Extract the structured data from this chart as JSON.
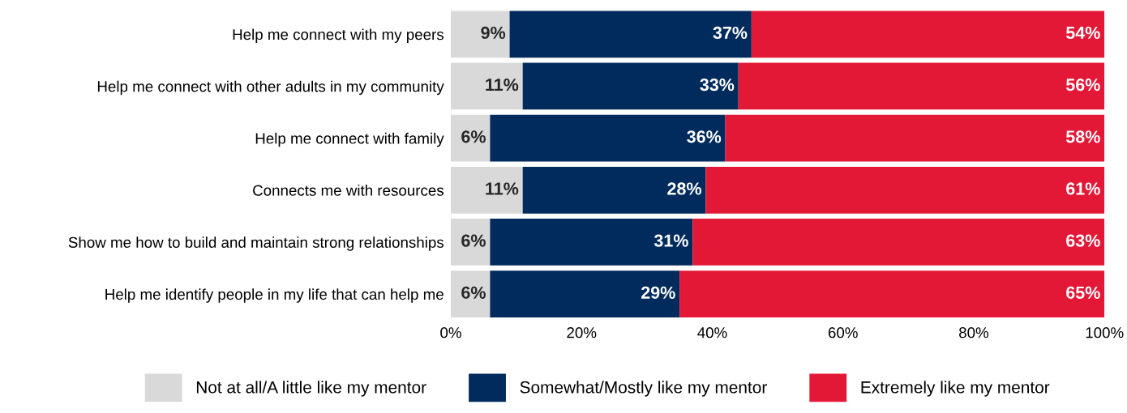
{
  "chart_data": {
    "type": "bar",
    "orientation": "horizontal",
    "stacked": true,
    "categories": [
      "Help me connect with my peers",
      "Help me connect with other adults in my community",
      "Help me connect with family",
      "Connects me with resources",
      "Show me how to build and maintain strong relationships",
      "Help me identify people in my life that can help me"
    ],
    "series": [
      {
        "name": "Not at all/A little like my mentor",
        "color": "#d9d9d9",
        "values": [
          9,
          11,
          6,
          11,
          6,
          6
        ],
        "value_labels": [
          "9%",
          "11%",
          "6%",
          "11%",
          "6%",
          "6%"
        ]
      },
      {
        "name": "Somewhat/Mostly like my mentor",
        "color": "#002b5c",
        "values": [
          37,
          33,
          36,
          28,
          31,
          29
        ],
        "value_labels": [
          "37%",
          "33%",
          "36%",
          "28%",
          "31%",
          "29%"
        ]
      },
      {
        "name": "Extremely like my mentor",
        "color": "#e31837",
        "values": [
          54,
          56,
          58,
          61,
          63,
          65
        ],
        "value_labels": [
          "54%",
          "56%",
          "58%",
          "61%",
          "63%",
          "65%"
        ]
      }
    ],
    "xlim": [
      0,
      100
    ],
    "xticks": [
      {
        "value": 0,
        "label": "0%"
      },
      {
        "value": 20,
        "label": "20%"
      },
      {
        "value": 40,
        "label": "40%"
      },
      {
        "value": 60,
        "label": "60%"
      },
      {
        "value": 80,
        "label": "80%"
      },
      {
        "value": 100,
        "label": "100%"
      }
    ],
    "grid": false,
    "legend": "bottom"
  }
}
